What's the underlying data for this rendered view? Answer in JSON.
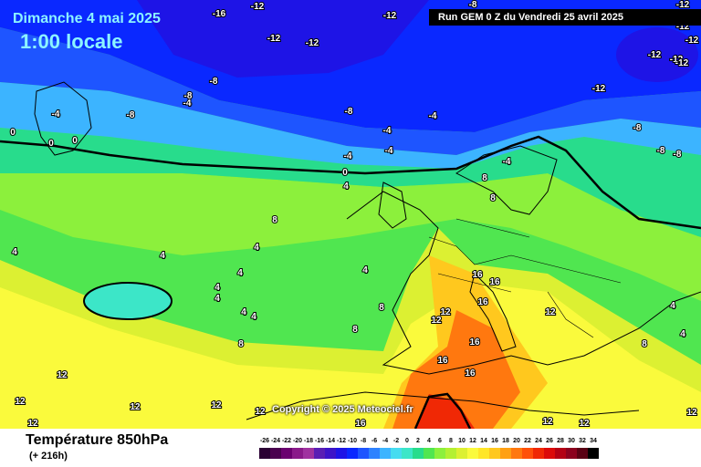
{
  "header": {
    "date": "Dimanche 4 mai 2025",
    "time": "1:00 locale",
    "run": "Run GEM 0 Z du Vendredi 25 avril 2025"
  },
  "copyright": "Copyright © 2025 Meteociel.fr",
  "footer": {
    "title": "Température 850hPa",
    "subtitle": "(+ 216h)"
  },
  "legend": [
    {
      "label": "-26",
      "color": "#2a0033"
    },
    {
      "label": "-24",
      "color": "#4a004f"
    },
    {
      "label": "-22",
      "color": "#6b0070"
    },
    {
      "label": "-20",
      "color": "#8a1a8a"
    },
    {
      "label": "-18",
      "color": "#a032a0"
    },
    {
      "label": "-16",
      "color": "#5a1eb4"
    },
    {
      "label": "-14",
      "color": "#3d14c8"
    },
    {
      "label": "-12",
      "color": "#1e14e6"
    },
    {
      "label": "-10",
      "color": "#0a28ff"
    },
    {
      "label": "-8",
      "color": "#1e55ff"
    },
    {
      "label": "-6",
      "color": "#2d82ff"
    },
    {
      "label": "-4",
      "color": "#3cb4ff"
    },
    {
      "label": "-2",
      "color": "#46dcf0"
    },
    {
      "label": "0",
      "color": "#3ce6c8"
    },
    {
      "label": "2",
      "color": "#28dc8c"
    },
    {
      "label": "4",
      "color": "#50e650"
    },
    {
      "label": "6",
      "color": "#8cf03c"
    },
    {
      "label": "8",
      "color": "#b4f032"
    },
    {
      "label": "10",
      "color": "#dcf032"
    },
    {
      "label": "12",
      "color": "#fafa3c"
    },
    {
      "label": "14",
      "color": "#ffe628"
    },
    {
      "label": "16",
      "color": "#ffc81e"
    },
    {
      "label": "18",
      "color": "#ffa014"
    },
    {
      "label": "20",
      "color": "#ff780f"
    },
    {
      "label": "22",
      "color": "#ff500a"
    },
    {
      "label": "24",
      "color": "#f02805"
    },
    {
      "label": "26",
      "color": "#dc0a0a"
    },
    {
      "label": "28",
      "color": "#b40014"
    },
    {
      "label": "30",
      "color": "#8c001e"
    },
    {
      "label": "32",
      "color": "#5a0014"
    },
    {
      "label": "34",
      "color": "#000000"
    }
  ],
  "isotherm_labels": [
    "-16",
    "-12",
    "-12",
    "-12",
    "-12",
    "-12",
    "-12",
    "-12",
    "-12",
    "-12",
    "-12",
    "-12",
    "-8",
    "-8",
    "-8",
    "-8",
    "-8",
    "-8",
    "-8",
    "-8",
    "-4",
    "-4",
    "-4",
    "-4",
    "-4",
    "-4",
    "-4",
    "0",
    "0",
    "0",
    "0",
    "4",
    "4",
    "4",
    "4",
    "4",
    "4",
    "4",
    "4",
    "4",
    "4",
    "4",
    "4",
    "8",
    "8",
    "8",
    "8",
    "8",
    "8",
    "8",
    "12",
    "12",
    "12",
    "12",
    "12",
    "12",
    "12",
    "12",
    "12",
    "12",
    "12",
    "12",
    "16",
    "16",
    "16",
    "16",
    "16",
    "16",
    "16"
  ]
}
